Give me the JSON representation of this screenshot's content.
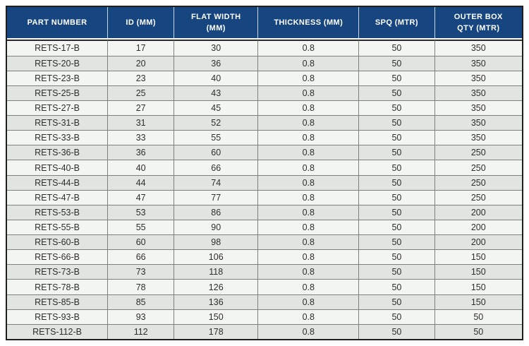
{
  "table": {
    "columns": [
      {
        "key": "part_number",
        "label": "PART NUMBER"
      },
      {
        "key": "id_mm",
        "label": "ID (MM)"
      },
      {
        "key": "flat_width_mm",
        "label": "FLAT WIDTH\n(MM)"
      },
      {
        "key": "thickness_mm",
        "label": "THICKNESS (MM)"
      },
      {
        "key": "spq_mtr",
        "label": "SPQ (MTR)"
      },
      {
        "key": "outer_box_qty_mtr",
        "label": "OUTER BOX\nQTY (MTR)"
      }
    ],
    "rows": [
      [
        "RETS-17-B",
        "17",
        "30",
        "0.8",
        "50",
        "350"
      ],
      [
        "RETS-20-B",
        "20",
        "36",
        "0.8",
        "50",
        "350"
      ],
      [
        "RETS-23-B",
        "23",
        "40",
        "0.8",
        "50",
        "350"
      ],
      [
        "RETS-25-B",
        "25",
        "43",
        "0.8",
        "50",
        "350"
      ],
      [
        "RETS-27-B",
        "27",
        "45",
        "0.8",
        "50",
        "350"
      ],
      [
        "RETS-31-B",
        "31",
        "52",
        "0.8",
        "50",
        "350"
      ],
      [
        "RETS-33-B",
        "33",
        "55",
        "0.8",
        "50",
        "350"
      ],
      [
        "RETS-36-B",
        "36",
        "60",
        "0.8",
        "50",
        "250"
      ],
      [
        "RETS-40-B",
        "40",
        "66",
        "0.8",
        "50",
        "250"
      ],
      [
        "RETS-44-B",
        "44",
        "74",
        "0.8",
        "50",
        "250"
      ],
      [
        "RETS-47-B",
        "47",
        "77",
        "0.8",
        "50",
        "250"
      ],
      [
        "RETS-53-B",
        "53",
        "86",
        "0.8",
        "50",
        "200"
      ],
      [
        "RETS-55-B",
        "55",
        "90",
        "0.8",
        "50",
        "200"
      ],
      [
        "RETS-60-B",
        "60",
        "98",
        "0.8",
        "50",
        "200"
      ],
      [
        "RETS-66-B",
        "66",
        "106",
        "0.8",
        "50",
        "150"
      ],
      [
        "RETS-73-B",
        "73",
        "118",
        "0.8",
        "50",
        "150"
      ],
      [
        "RETS-78-B",
        "78",
        "126",
        "0.8",
        "50",
        "150"
      ],
      [
        "RETS-85-B",
        "85",
        "136",
        "0.8",
        "50",
        "150"
      ],
      [
        "RETS-93-B",
        "93",
        "150",
        "0.8",
        "50",
        "50"
      ],
      [
        "RETS-112-B",
        "112",
        "178",
        "0.8",
        "50",
        "50"
      ]
    ]
  },
  "colors": {
    "header_bg": "#17457f",
    "header_text": "#ffffff",
    "row_light": "#f3f5f2",
    "row_dark": "#e0e5e1",
    "border_dark": "#1f1f1f",
    "grid_line": "#7d807e",
    "body_text": "#2e2e2e",
    "header_divider": "#c9d4e4"
  }
}
